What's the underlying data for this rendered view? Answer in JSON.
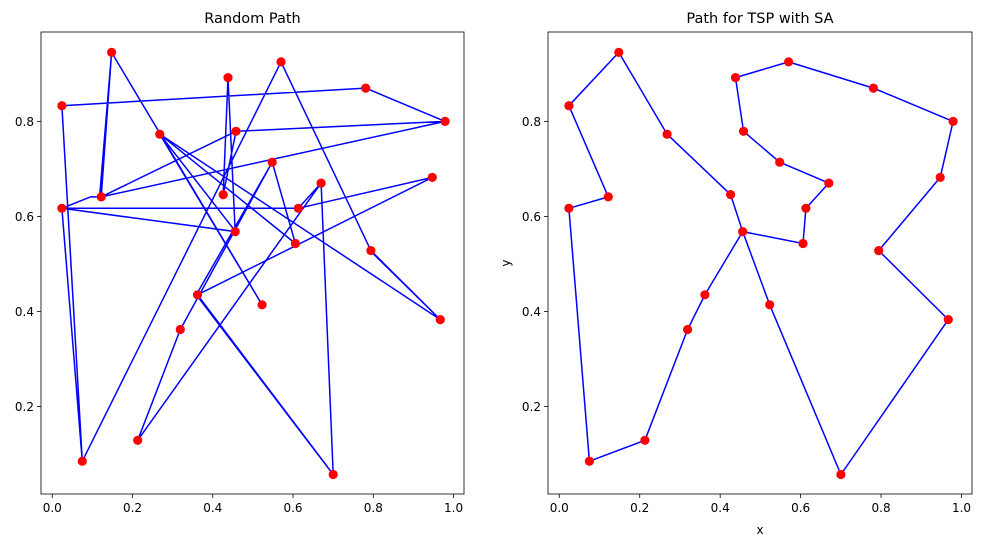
{
  "chart_data": [
    {
      "type": "line",
      "title": "Random Path",
      "xlabel": "",
      "ylabel": "",
      "xlim": [
        -0.028,
        1.026
      ],
      "ylim": [
        0.016,
        0.988
      ],
      "xticks": [
        "0.0",
        "0.2",
        "0.4",
        "0.6",
        "0.8",
        "1.0"
      ],
      "yticks": [
        "0.2",
        "0.4",
        "0.6",
        "0.8"
      ],
      "grid": false,
      "line_color": "#0000ff",
      "marker_color": "#ff0000",
      "points": [
        [
          0.979,
          0.8
        ],
        [
          0.122,
          0.641
        ],
        [
          0.458,
          0.779
        ],
        [
          0.426,
          0.646
        ],
        [
          0.438,
          0.892
        ],
        [
          0.456,
          0.568
        ],
        [
          0.024,
          0.617
        ],
        [
          0.613,
          0.617
        ],
        [
          0.947,
          0.682
        ],
        [
          0.362,
          0.435
        ],
        [
          0.7,
          0.057
        ],
        [
          0.359,
          0.435
        ],
        [
          0.548,
          0.714
        ],
        [
          0.606,
          0.543
        ],
        [
          0.268,
          0.773
        ],
        [
          0.523,
          0.414
        ],
        [
          0.148,
          0.945
        ],
        [
          0.118,
          0.641
        ],
        [
          0.095,
          0.641
        ],
        [
          0.024,
          0.617
        ],
        [
          0.075,
          0.085
        ],
        [
          0.57,
          0.925
        ],
        [
          0.794,
          0.528
        ],
        [
          0.967,
          0.383
        ],
        [
          0.268,
          0.773
        ],
        [
          0.457,
          0.568
        ],
        [
          0.024,
          0.617
        ],
        [
          0.613,
          0.617
        ],
        [
          0.67,
          0.67
        ],
        [
          0.7,
          0.057
        ],
        [
          0.67,
          0.67
        ],
        [
          0.213,
          0.129
        ],
        [
          0.319,
          0.362
        ],
        [
          0.548,
          0.714
        ],
        [
          0.606,
          0.543
        ],
        [
          0.268,
          0.773
        ],
        [
          0.523,
          0.414
        ],
        [
          0.148,
          0.945
        ],
        [
          0.122,
          0.641
        ],
        [
          0.458,
          0.779
        ],
        [
          0.979,
          0.8
        ],
        [
          0.781,
          0.87
        ],
        [
          0.024,
          0.833
        ],
        [
          0.075,
          0.085
        ],
        [
          0.57,
          0.925
        ],
        [
          0.794,
          0.528
        ],
        [
          0.967,
          0.383
        ],
        [
          0.792,
          0.528
        ],
        [
          0.794,
          0.528
        ]
      ],
      "markers": [
        [
          0.148,
          0.945
        ],
        [
          0.438,
          0.892
        ],
        [
          0.57,
          0.925
        ],
        [
          0.781,
          0.87
        ],
        [
          0.024,
          0.833
        ],
        [
          0.979,
          0.8
        ],
        [
          0.268,
          0.773
        ],
        [
          0.458,
          0.779
        ],
        [
          0.548,
          0.714
        ],
        [
          0.67,
          0.67
        ],
        [
          0.947,
          0.682
        ],
        [
          0.122,
          0.641
        ],
        [
          0.426,
          0.646
        ],
        [
          0.024,
          0.617
        ],
        [
          0.613,
          0.617
        ],
        [
          0.456,
          0.568
        ],
        [
          0.606,
          0.543
        ],
        [
          0.794,
          0.528
        ],
        [
          0.362,
          0.435
        ],
        [
          0.523,
          0.414
        ],
        [
          0.319,
          0.362
        ],
        [
          0.967,
          0.383
        ],
        [
          0.213,
          0.129
        ],
        [
          0.075,
          0.085
        ],
        [
          0.7,
          0.057
        ]
      ]
    },
    {
      "type": "line",
      "title": "Path for TSP with SA",
      "xlabel": "x",
      "ylabel": "y",
      "xlim": [
        -0.028,
        1.026
      ],
      "ylim": [
        0.016,
        0.988
      ],
      "xticks": [
        "0.0",
        "0.2",
        "0.4",
        "0.6",
        "0.8",
        "1.0"
      ],
      "yticks": [
        "0.2",
        "0.4",
        "0.6",
        "0.8"
      ],
      "grid": false,
      "line_color": "#0000ff",
      "marker_color": "#ff0000",
      "points": [
        [
          0.024,
          0.833
        ],
        [
          0.148,
          0.945
        ],
        [
          0.268,
          0.773
        ],
        [
          0.426,
          0.646
        ],
        [
          0.456,
          0.568
        ],
        [
          0.606,
          0.543
        ],
        [
          0.613,
          0.617
        ],
        [
          0.67,
          0.67
        ],
        [
          0.548,
          0.714
        ],
        [
          0.458,
          0.779
        ],
        [
          0.438,
          0.892
        ],
        [
          0.57,
          0.925
        ],
        [
          0.781,
          0.87
        ],
        [
          0.979,
          0.8
        ],
        [
          0.947,
          0.682
        ],
        [
          0.794,
          0.528
        ],
        [
          0.967,
          0.383
        ],
        [
          0.7,
          0.057
        ],
        [
          0.523,
          0.414
        ],
        [
          0.456,
          0.568
        ],
        [
          0.362,
          0.435
        ],
        [
          0.319,
          0.362
        ],
        [
          0.213,
          0.129
        ],
        [
          0.075,
          0.085
        ],
        [
          0.024,
          0.617
        ],
        [
          0.122,
          0.641
        ],
        [
          0.024,
          0.833
        ]
      ],
      "markers": [
        [
          0.148,
          0.945
        ],
        [
          0.438,
          0.892
        ],
        [
          0.57,
          0.925
        ],
        [
          0.781,
          0.87
        ],
        [
          0.024,
          0.833
        ],
        [
          0.979,
          0.8
        ],
        [
          0.268,
          0.773
        ],
        [
          0.458,
          0.779
        ],
        [
          0.548,
          0.714
        ],
        [
          0.67,
          0.67
        ],
        [
          0.947,
          0.682
        ],
        [
          0.122,
          0.641
        ],
        [
          0.426,
          0.646
        ],
        [
          0.024,
          0.617
        ],
        [
          0.613,
          0.617
        ],
        [
          0.456,
          0.568
        ],
        [
          0.606,
          0.543
        ],
        [
          0.794,
          0.528
        ],
        [
          0.362,
          0.435
        ],
        [
          0.523,
          0.414
        ],
        [
          0.319,
          0.362
        ],
        [
          0.967,
          0.383
        ],
        [
          0.213,
          0.129
        ],
        [
          0.075,
          0.085
        ],
        [
          0.7,
          0.057
        ]
      ]
    }
  ]
}
